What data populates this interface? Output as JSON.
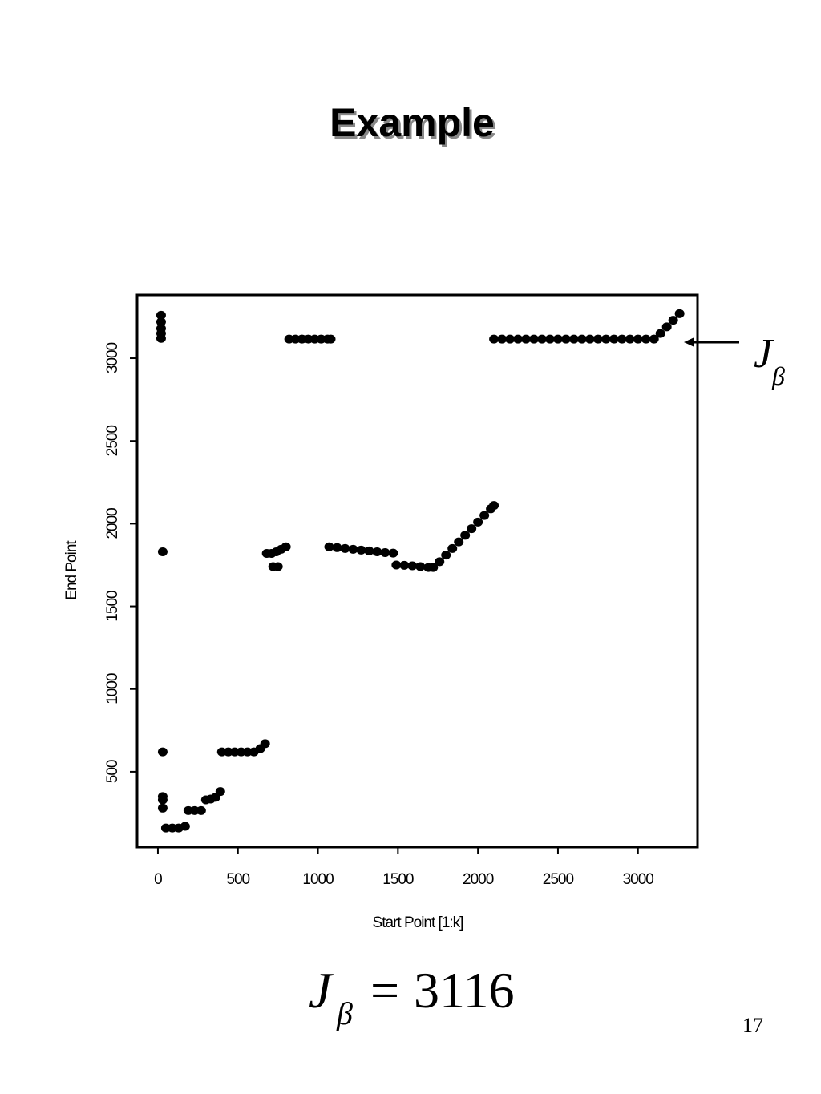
{
  "title": "Example",
  "chart_data": {
    "type": "scatter",
    "x_label": "Start Point [1:k]",
    "y_label": "End Point",
    "color": "#000000",
    "xlim": [
      -130,
      3372
    ],
    "ylim": [
      44,
      3383
    ],
    "xticks": [
      0,
      500,
      1000,
      1500,
      2000,
      2500,
      3000
    ],
    "yticks": [
      500,
      1000,
      1500,
      2000,
      2500,
      3000
    ],
    "x": [
      20,
      20,
      20,
      20,
      20,
      820,
      860,
      900,
      940,
      980,
      1020,
      1060,
      1080,
      2100,
      2150,
      2200,
      2250,
      2300,
      2350,
      2400,
      2450,
      2500,
      2550,
      2600,
      2650,
      2700,
      2750,
      2800,
      2850,
      2900,
      2950,
      3000,
      3050,
      3100,
      3140,
      3180,
      3220,
      3260,
      30,
      680,
      710,
      740,
      770,
      800,
      720,
      750,
      1070,
      1120,
      1170,
      1220,
      1270,
      1320,
      1370,
      1420,
      1470,
      1490,
      1540,
      1590,
      1640,
      1690,
      1720,
      1760,
      1800,
      1840,
      1880,
      1920,
      1960,
      2000,
      2040,
      2080,
      2100,
      30,
      400,
      440,
      480,
      520,
      560,
      600,
      640,
      670,
      30,
      30,
      30,
      50,
      90,
      130,
      170,
      190,
      230,
      270,
      300,
      330,
      360,
      390
    ],
    "y": [
      3260,
      3220,
      3180,
      3150,
      3120,
      3116,
      3116,
      3116,
      3116,
      3116,
      3116,
      3116,
      3116,
      3116,
      3116,
      3116,
      3116,
      3116,
      3116,
      3116,
      3116,
      3116,
      3116,
      3116,
      3116,
      3116,
      3116,
      3116,
      3116,
      3116,
      3116,
      3116,
      3116,
      3116,
      3150,
      3190,
      3230,
      3270,
      1830,
      1820,
      1820,
      1830,
      1845,
      1860,
      1740,
      1740,
      1860,
      1855,
      1850,
      1845,
      1840,
      1835,
      1830,
      1825,
      1822,
      1750,
      1748,
      1745,
      1740,
      1735,
      1735,
      1770,
      1810,
      1850,
      1890,
      1930,
      1970,
      2010,
      2050,
      2090,
      2110,
      620,
      620,
      620,
      620,
      620,
      620,
      620,
      640,
      670,
      350,
      330,
      280,
      160,
      160,
      160,
      170,
      265,
      265,
      265,
      330,
      335,
      345,
      380
    ],
    "annotation": {
      "symbol": "J",
      "subscript": "β"
    }
  },
  "equation": {
    "symbol": "J",
    "subscript": "β",
    "relation": "=",
    "value": 3116
  },
  "page_number": 17
}
